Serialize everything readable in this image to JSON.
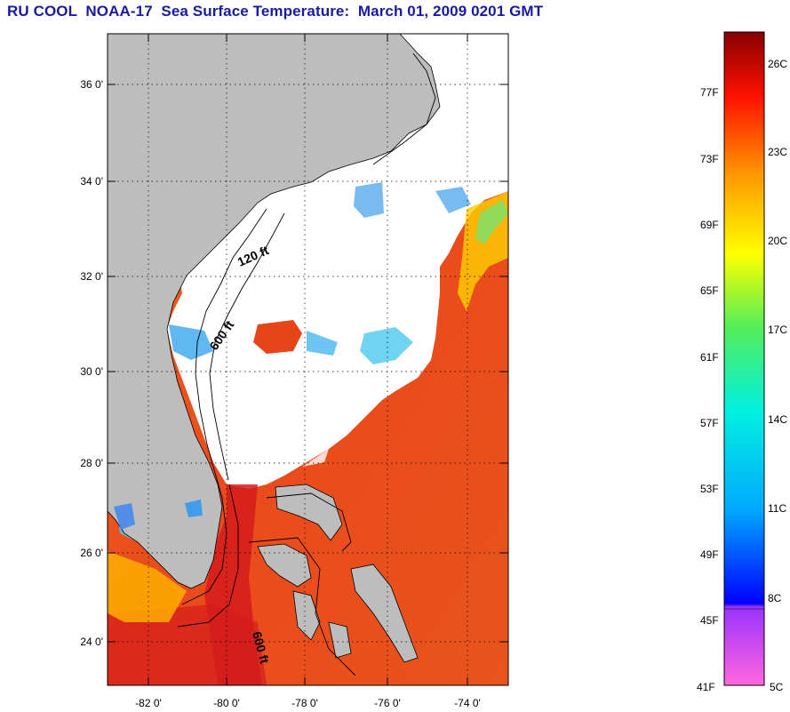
{
  "title": "RU COOL  NOAA-17  Sea Surface Temperature:  March 01, 2009 0201 GMT",
  "map": {
    "lat_labels": [
      "36 0'",
      "34 0'",
      "32 0'",
      "30 0'",
      "28 0'",
      "26 0'",
      "24 0'"
    ],
    "lon_labels": [
      "-82 0'",
      "-80 0'",
      "-78 0'",
      "-76 0'",
      "-74 0'"
    ],
    "contour_labels": [
      "120 ft",
      "600 ft",
      "600 ft"
    ],
    "colors": {
      "land": "#bdbdbd",
      "cloud": "#ffffff",
      "warm": "#e8441a",
      "gulf_stream": "#d41c1c"
    }
  },
  "colorbar": {
    "fahrenheit": [
      "77F",
      "73F",
      "69F",
      "65F",
      "61F",
      "57F",
      "53F",
      "49F",
      "45F",
      "41F"
    ],
    "celsius": [
      "26C",
      "23C",
      "20C",
      "17C",
      "14C",
      "11C",
      "8C",
      "5C"
    ]
  }
}
